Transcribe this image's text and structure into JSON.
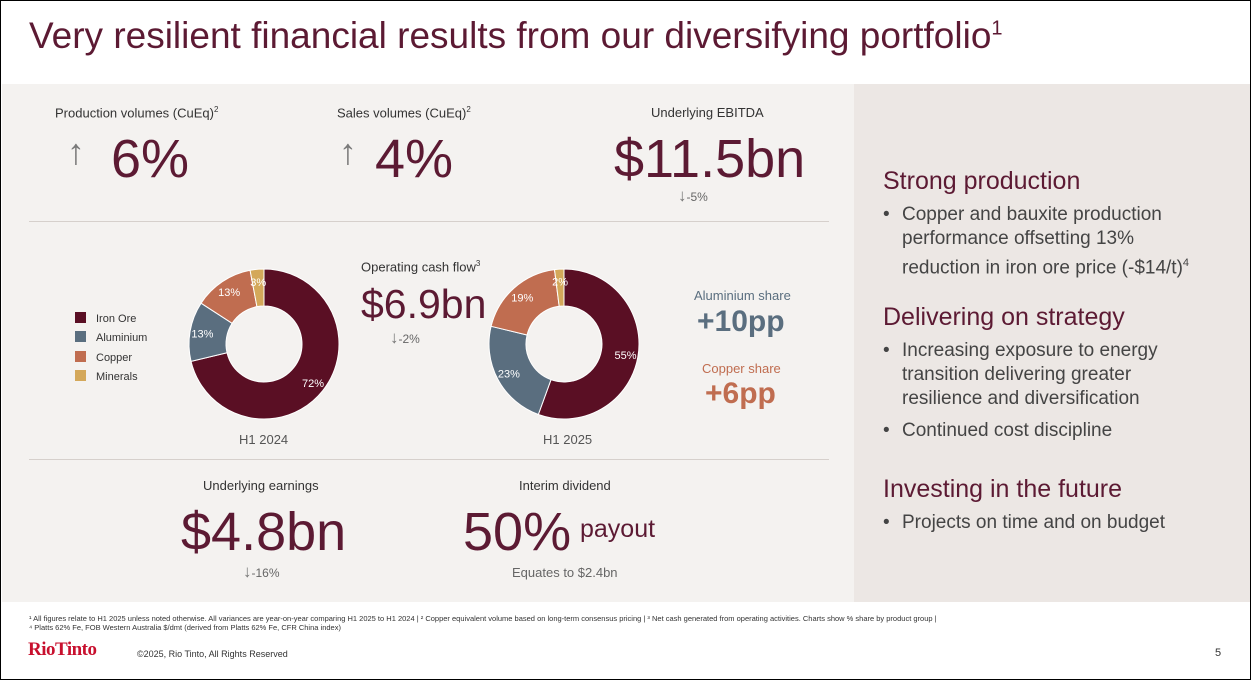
{
  "title": "Very resilient financial results from our diversifying portfolio",
  "title_sup": "1",
  "metrics": {
    "production": {
      "label": "Production volumes (CuEq)",
      "sup": "2",
      "value": "6%",
      "arrow": "↑"
    },
    "sales": {
      "label": "Sales volumes (CuEq)",
      "sup": "2",
      "value": "4%",
      "arrow": "↑"
    },
    "ebitda": {
      "label": "Underlying EBITDA",
      "value": "$11.5bn",
      "change": "-5%",
      "arrow": "↓"
    },
    "cashflow": {
      "label": "Operating cash flow",
      "sup": "3",
      "value": "$6.9bn",
      "change": "-2%",
      "arrow": "↓"
    },
    "earnings": {
      "label": "Underlying earnings",
      "value": "$4.8bn",
      "change": "-16%",
      "arrow": "↓"
    },
    "dividend": {
      "label": "Interim dividend",
      "value": "50%",
      "suffix": "payout",
      "note": "Equates to $2.4bn"
    }
  },
  "shares": {
    "aluminium": {
      "label": "Aluminium share",
      "value": "+10pp",
      "color": "#5a6e7f"
    },
    "copper": {
      "label": "Copper share",
      "value": "+6pp",
      "color": "#c06d50"
    }
  },
  "legend": [
    {
      "label": "Iron Ore",
      "color": "#5a0f24"
    },
    {
      "label": "Aluminium",
      "color": "#5a6e7f"
    },
    {
      "label": "Copper",
      "color": "#c06d50"
    },
    {
      "label": "Minerals",
      "color": "#d4a85a"
    }
  ],
  "chart_data": [
    {
      "type": "pie",
      "title": "H1 2024",
      "categories": [
        "Iron Ore",
        "Aluminium",
        "Copper",
        "Minerals"
      ],
      "values": [
        72,
        13,
        13,
        3
      ],
      "labels": [
        "72%",
        "13%",
        "13%",
        "3%"
      ]
    },
    {
      "type": "pie",
      "title": "H1 2025",
      "categories": [
        "Iron Ore",
        "Aluminium",
        "Copper",
        "Minerals"
      ],
      "values": [
        55,
        23,
        19,
        2
      ],
      "labels": [
        "55%",
        "23%",
        "19%",
        "2%"
      ]
    }
  ],
  "right_panel": {
    "sections": [
      {
        "heading": "Strong production",
        "bullets": [
          "Copper and bauxite production performance offsetting 13% reduction in iron ore price (-$14/t)"
        ],
        "bullet_sup": "4"
      },
      {
        "heading": "Delivering on strategy",
        "bullets": [
          "Increasing exposure to energy transition delivering greater resilience and diversification",
          "Continued cost discipline"
        ]
      },
      {
        "heading": "Investing in the future",
        "bullets": [
          "Projects on time and on budget"
        ]
      }
    ]
  },
  "footnotes": {
    "line1": "¹ All figures relate to H1 2025 unless noted otherwise. All variances are year-on-year comparing H1 2025 to H1 2024 | ² Copper equivalent volume based on long-term consensus pricing | ³ Net cash generated from operating activities. Charts show % share by product group |",
    "line2": "⁴ Platts 62% Fe, FOB Western Australia $/dmt (derived from Platts 62% Fe, CFR China index)"
  },
  "footer": {
    "logo": "RioTinto",
    "copyright": "©2025, Rio Tinto, All Rights Reserved",
    "page": "5"
  }
}
